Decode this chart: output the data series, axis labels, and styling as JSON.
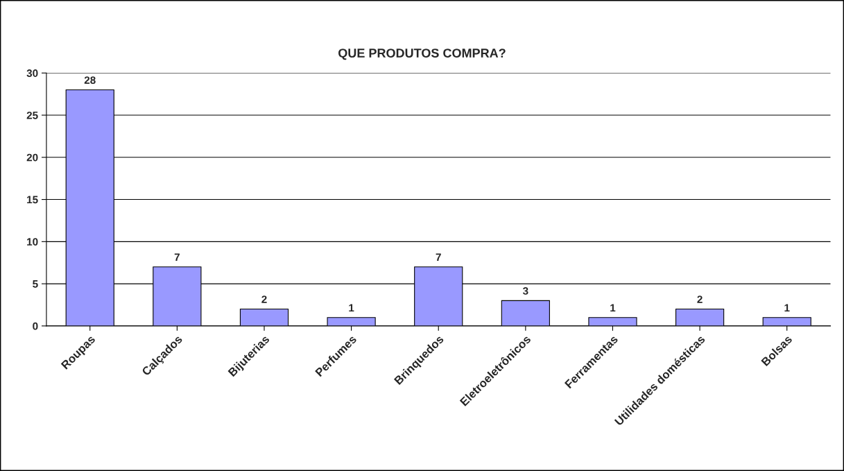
{
  "chart_data": {
    "type": "bar",
    "title": "QUE PRODUTOS COMPRA?",
    "categories": [
      "Roupas",
      "Calçados",
      "Bijuterias",
      "Perfumes",
      "Brinquedos",
      "Eletroeletrônicos",
      "Ferramentas",
      "Utilidades domésticas",
      "Bolsas"
    ],
    "values": [
      28,
      7,
      2,
      1,
      7,
      3,
      1,
      2,
      1
    ],
    "color": "#9999ff",
    "ylim": [
      0,
      30
    ],
    "yticks": [
      0,
      5,
      10,
      15,
      20,
      25,
      30
    ],
    "grid": "y",
    "data_labels": true
  }
}
